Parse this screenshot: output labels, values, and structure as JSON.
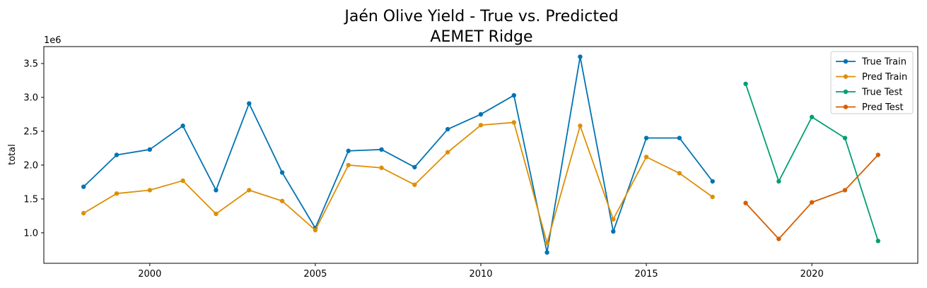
{
  "chart_data": {
    "type": "line",
    "title": "Jaén Olive Yield - True vs. Predicted",
    "subtitle": "AEMET Ridge",
    "xlabel": "",
    "ylabel": "total",
    "y_multiplier_label": "1e6",
    "xlim": [
      1996.8,
      2023.2
    ],
    "ylim": [
      0.55,
      3.75
    ],
    "x_ticks": [
      2000,
      2005,
      2010,
      2015,
      2020
    ],
    "y_ticks": [
      1.0,
      1.5,
      2.0,
      2.5,
      3.0,
      3.5
    ],
    "x_tick_labels": [
      "2000",
      "2005",
      "2010",
      "2015",
      "2020"
    ],
    "y_tick_labels": [
      "1.0",
      "1.5",
      "2.0",
      "2.5",
      "3.0",
      "3.5"
    ],
    "legend_position": "upper right",
    "series": [
      {
        "name": "True Train",
        "color": "#0173b2",
        "x": [
          1998,
          1999,
          2000,
          2001,
          2002,
          2003,
          2004,
          2005,
          2006,
          2007,
          2008,
          2009,
          2010,
          2011,
          2012,
          2013,
          2014,
          2015,
          2016,
          2017
        ],
        "values": [
          1.68,
          2.15,
          2.23,
          2.58,
          1.63,
          2.91,
          1.89,
          1.07,
          2.21,
          2.23,
          1.97,
          2.53,
          2.75,
          3.03,
          0.71,
          3.6,
          1.02,
          2.4,
          2.4,
          1.76
        ]
      },
      {
        "name": "Pred Train",
        "color": "#de8f05",
        "x": [
          1998,
          1999,
          2000,
          2001,
          2002,
          2003,
          2004,
          2005,
          2006,
          2007,
          2008,
          2009,
          2010,
          2011,
          2012,
          2013,
          2014,
          2015,
          2016,
          2017
        ],
        "values": [
          1.29,
          1.58,
          1.63,
          1.77,
          1.28,
          1.63,
          1.47,
          1.04,
          2.0,
          1.96,
          1.71,
          2.19,
          2.59,
          2.63,
          0.85,
          2.58,
          1.2,
          2.12,
          1.88,
          1.53
        ]
      },
      {
        "name": "True Test",
        "color": "#029e73",
        "x": [
          2018,
          2019,
          2020,
          2021,
          2022
        ],
        "values": [
          3.2,
          1.76,
          2.71,
          2.4,
          0.88
        ]
      },
      {
        "name": "Pred Test",
        "color": "#d55e00",
        "x": [
          2018,
          2019,
          2020,
          2021,
          2022
        ],
        "values": [
          1.44,
          0.91,
          1.45,
          1.63,
          2.15
        ]
      }
    ]
  }
}
